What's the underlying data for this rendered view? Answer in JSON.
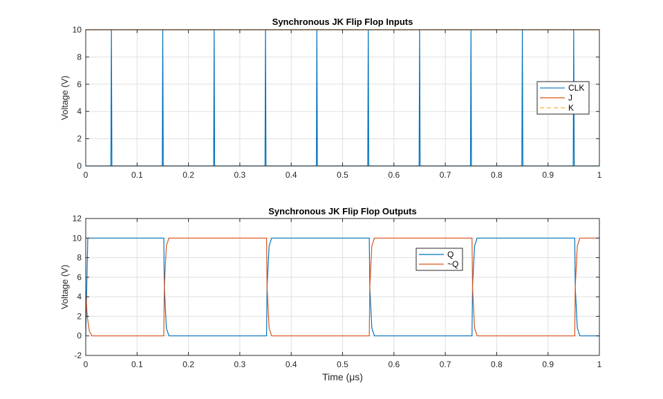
{
  "chart_data": [
    {
      "type": "line",
      "title": "Synchronous JK Flip Flop Inputs",
      "xlabel": "",
      "ylabel": "Voltage (V)",
      "xlim": [
        0,
        1
      ],
      "ylim": [
        0,
        10
      ],
      "xticks": [
        "0",
        "0.1",
        "0.2",
        "0.3",
        "0.4",
        "0.5",
        "0.6",
        "0.7",
        "0.8",
        "0.9",
        "1"
      ],
      "yticks": [
        "0",
        "2",
        "4",
        "6",
        "8",
        "10"
      ],
      "grid": true,
      "legend": "right",
      "series": [
        {
          "name": "CLK",
          "color": "#0072bd",
          "style": "solid",
          "x": [
            0,
            0.049,
            0.05,
            0.051,
            0.149,
            0.15,
            0.151,
            0.249,
            0.25,
            0.251,
            0.349,
            0.35,
            0.351,
            0.449,
            0.45,
            0.451,
            0.549,
            0.55,
            0.551,
            0.649,
            0.65,
            0.651,
            0.749,
            0.75,
            0.751,
            0.849,
            0.85,
            0.851,
            0.949,
            0.95,
            0.951,
            1
          ],
          "y": [
            0,
            0,
            10,
            0,
            0,
            10,
            0,
            0,
            10,
            0,
            0,
            10,
            0,
            0,
            10,
            0,
            0,
            10,
            0,
            0,
            10,
            0,
            0,
            10,
            0,
            0,
            10,
            0,
            0,
            10,
            0,
            0
          ]
        },
        {
          "name": "J",
          "color": "#d95319",
          "style": "solid",
          "x": [
            0,
            1
          ],
          "y": [
            10,
            10
          ]
        },
        {
          "name": "K",
          "color": "#edb120",
          "style": "dashed",
          "x": [
            0,
            1
          ],
          "y": [
            10,
            10
          ]
        }
      ]
    },
    {
      "type": "line",
      "title": "Synchronous JK Flip Flop Outputs",
      "xlabel": "Time  (μs)",
      "ylabel": "Voltage (V)",
      "xlim": [
        0,
        1
      ],
      "ylim": [
        -2,
        12
      ],
      "xticks": [
        "0",
        "0.1",
        "0.2",
        "0.3",
        "0.4",
        "0.5",
        "0.6",
        "0.7",
        "0.8",
        "0.9",
        "1"
      ],
      "yticks": [
        "-2",
        "0",
        "2",
        "4",
        "6",
        "8",
        "10",
        "12"
      ],
      "grid": true,
      "legend": "top-right",
      "series": [
        {
          "name": "Q",
          "color": "#0072bd",
          "style": "solid",
          "x": [
            0,
            0.004,
            0.152,
            0.153,
            0.157,
            0.162,
            0.352,
            0.353,
            0.357,
            0.362,
            0.552,
            0.553,
            0.557,
            0.562,
            0.752,
            0.753,
            0.757,
            0.762,
            0.952,
            0.953,
            0.957,
            0.962,
            1
          ],
          "y": [
            0,
            10,
            10,
            5,
            0.8,
            0,
            0,
            5,
            9.2,
            10,
            10,
            5,
            0.8,
            0,
            0,
            5,
            9.2,
            10,
            10,
            5,
            0.8,
            0,
            0
          ]
        },
        {
          "name": "~Q",
          "color": "#d95319",
          "style": "solid",
          "x": [
            0,
            0.003,
            0.007,
            0.012,
            0.152,
            0.153,
            0.157,
            0.162,
            0.352,
            0.353,
            0.357,
            0.362,
            0.552,
            0.553,
            0.557,
            0.562,
            0.752,
            0.753,
            0.757,
            0.762,
            0.952,
            0.953,
            0.957,
            0.962,
            1
          ],
          "y": [
            4.5,
            2,
            0.5,
            0,
            0,
            5,
            9.2,
            10,
            10,
            5,
            0.8,
            0,
            0,
            5,
            9.2,
            10,
            10,
            5,
            0.8,
            0,
            0,
            5,
            9.2,
            10,
            10
          ]
        }
      ]
    }
  ]
}
